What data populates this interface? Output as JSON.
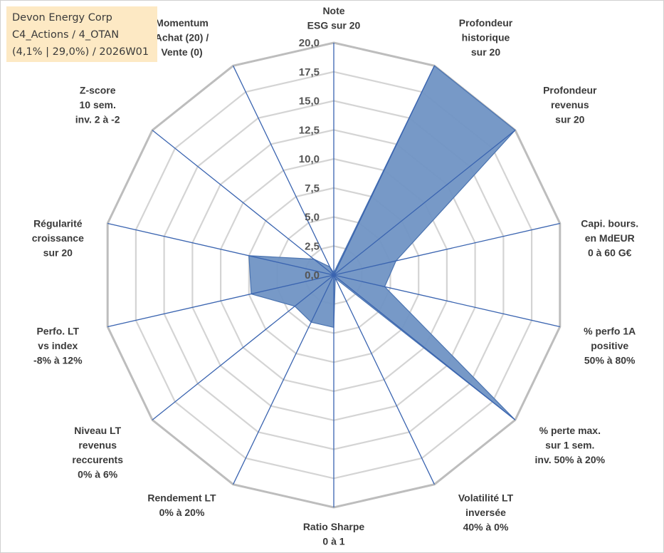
{
  "info": {
    "company": "Devon Energy Corp",
    "category": "C4_Actions / 4_OTAN",
    "stats": "(4,1% | 29,0%) / 2026W01"
  },
  "chart_data": {
    "type": "radar",
    "title": "",
    "rmin": 0,
    "rmax": 20,
    "ticks": [
      "0,0",
      "2,5",
      "5,0",
      "7,5",
      "10,0",
      "12,5",
      "15,0",
      "17,5",
      "20,0"
    ],
    "axes": [
      {
        "label": [
          "Note",
          "ESG sur 20"
        ]
      },
      {
        "label": [
          "Profondeur",
          "historique",
          "sur 20"
        ]
      },
      {
        "label": [
          "Profondeur",
          "revenus",
          "sur 20"
        ]
      },
      {
        "label": [
          "Capi. bours.",
          "en MdEUR",
          "0 à 60 G€"
        ]
      },
      {
        "label": [
          "% perfo 1A",
          "positive",
          "50% à 80%"
        ]
      },
      {
        "label": [
          "% perte max.",
          "sur 1 sem.",
          "inv. 50% à 20%"
        ]
      },
      {
        "label": [
          "Volatilité LT",
          "inversée",
          "40% à 0%"
        ]
      },
      {
        "label": [
          "Ratio Sharpe",
          "0 à 1"
        ]
      },
      {
        "label": [
          "Rendement LT",
          "0% à 20%"
        ]
      },
      {
        "label": [
          "Niveau LT",
          "revenus",
          "reccurents",
          "0% à 6%"
        ]
      },
      {
        "label": [
          "Perfo. LT",
          "vs index",
          "-8% à 12%"
        ]
      },
      {
        "label": [
          "Régularité",
          "croissance",
          "sur 20"
        ]
      },
      {
        "label": [
          "Z-score",
          "10 sem.",
          "inv. 2 à -2"
        ]
      },
      {
        "label": [
          "Momentum",
          "Achat (20) /",
          "Vente (0)"
        ]
      }
    ],
    "series": [
      {
        "name": "Devon Energy Corp",
        "color": "#7094c4",
        "stroke": "#4a73b0",
        "values": [
          0.2,
          20.0,
          20.0,
          5.5,
          4.5,
          20.0,
          0.3,
          4.5,
          4.5,
          4.3,
          7.3,
          7.5,
          2.2,
          0.8
        ]
      }
    ]
  }
}
